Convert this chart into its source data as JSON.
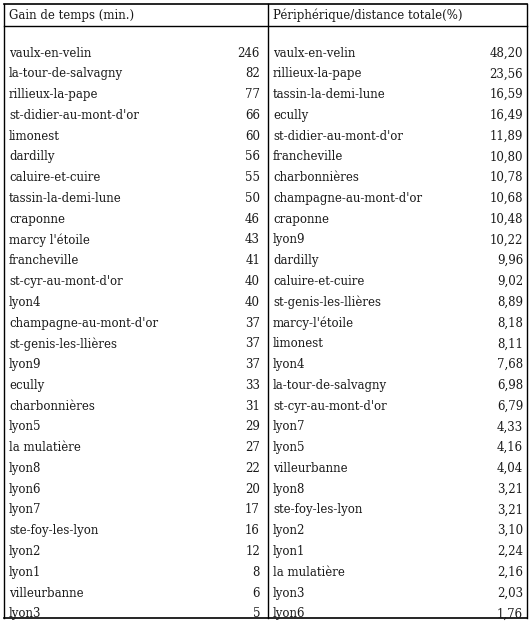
{
  "col1_header": "Gain de temps (min.)",
  "col2_header": "Périphérique/distance totale(%)",
  "col1_communes": [
    "vaulx-en-velin",
    "la-tour-de-salvagny",
    "rillieux-la-pape",
    "st-didier-au-mont-d'or",
    "limonest",
    "dardilly",
    "caluire-et-cuire",
    "tassin-la-demi-lune",
    "craponne",
    "marcy l'étoile",
    "francheville",
    "st-cyr-au-mont-d'or",
    "lyon4",
    "champagne-au-mont-d'or",
    "st-genis-les-llières",
    "lyon9",
    "ecully",
    "charbonnières",
    "lyon5",
    "la mulatière",
    "lyon8",
    "lyon6",
    "lyon7",
    "ste-foy-les-lyon",
    "lyon2",
    "lyon1",
    "villeurbanne",
    "lyon3"
  ],
  "col1_values": [
    246,
    82,
    77,
    66,
    60,
    56,
    55,
    50,
    46,
    43,
    41,
    40,
    40,
    37,
    37,
    37,
    33,
    31,
    29,
    27,
    22,
    20,
    17,
    16,
    12,
    8,
    6,
    5
  ],
  "col2_communes": [
    "vaulx-en-velin",
    "rillieux-la-pape",
    "tassin-la-demi-lune",
    "ecully",
    "st-didier-au-mont-d'or",
    "francheville",
    "charbonnières",
    "champagne-au-mont-d'or",
    "craponne",
    "lyon9",
    "dardilly",
    "caluire-et-cuire",
    "st-genis-les-llières",
    "marcy-l'étoile",
    "limonest",
    "lyon4",
    "la-tour-de-salvagny",
    "st-cyr-au-mont-d'or",
    "lyon7",
    "lyon5",
    "villeurbanne",
    "lyon8",
    "ste-foy-les-lyon",
    "lyon2",
    "lyon1",
    "la mulatière",
    "lyon3",
    "lyon6"
  ],
  "col2_values": [
    "48,20",
    "23,56",
    "16,59",
    "16,49",
    "11,89",
    "10,80",
    "10,78",
    "10,68",
    "10,48",
    "10,22",
    "9,96",
    "9,02",
    "8,89",
    "8,18",
    "8,11",
    "7,68",
    "6,98",
    "6,79",
    "4,33",
    "4,16",
    "4,04",
    "3,21",
    "3,21",
    "3,10",
    "2,24",
    "2,16",
    "2,03",
    "1,76"
  ],
  "text_color": "#1a1a1a",
  "font_size": 8.5,
  "header_font_size": 8.5,
  "fig_width": 5.31,
  "fig_height": 6.22,
  "dpi": 100
}
